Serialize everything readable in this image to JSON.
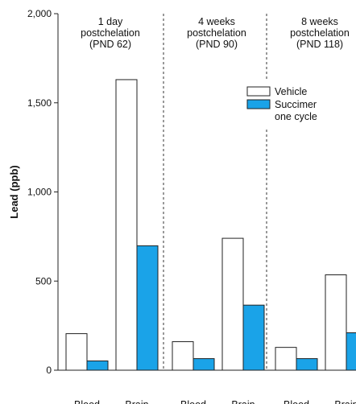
{
  "chart_data": {
    "type": "bar",
    "ylabel": "Lead (ppb)",
    "ylim": [
      0,
      2000
    ],
    "yticks": [
      {
        "value": 0,
        "label": "0"
      },
      {
        "value": 500,
        "label": "500"
      },
      {
        "value": 1000,
        "label": "1,000"
      },
      {
        "value": 1500,
        "label": "1,500"
      },
      {
        "value": 2000,
        "label": "2,000"
      }
    ],
    "groups": [
      {
        "label_lines": [
          "1 day",
          "postchelation",
          "(PND 62)"
        ],
        "categories": [
          "Blood",
          "Brain"
        ]
      },
      {
        "label_lines": [
          "4 weeks",
          "postchelation",
          "(PND 90)"
        ],
        "categories": [
          "Blood",
          "Brain"
        ]
      },
      {
        "label_lines": [
          "8 weeks",
          "postchelation",
          "(PND 118)"
        ],
        "categories": [
          "Blood",
          "Brain"
        ]
      }
    ],
    "series": [
      {
        "name": "Vehicle",
        "color": "#ffffff",
        "values": [
          [
            205,
            1630
          ],
          [
            160,
            740
          ],
          [
            128,
            535
          ]
        ]
      },
      {
        "name_lines": [
          "Succimer",
          "one cycle"
        ],
        "color": "#1aa3e8",
        "values": [
          [
            52,
            698
          ],
          [
            65,
            365
          ],
          [
            65,
            210
          ]
        ]
      }
    ],
    "grid": false,
    "legend_position": "top-right",
    "group_separators": "dashed"
  }
}
